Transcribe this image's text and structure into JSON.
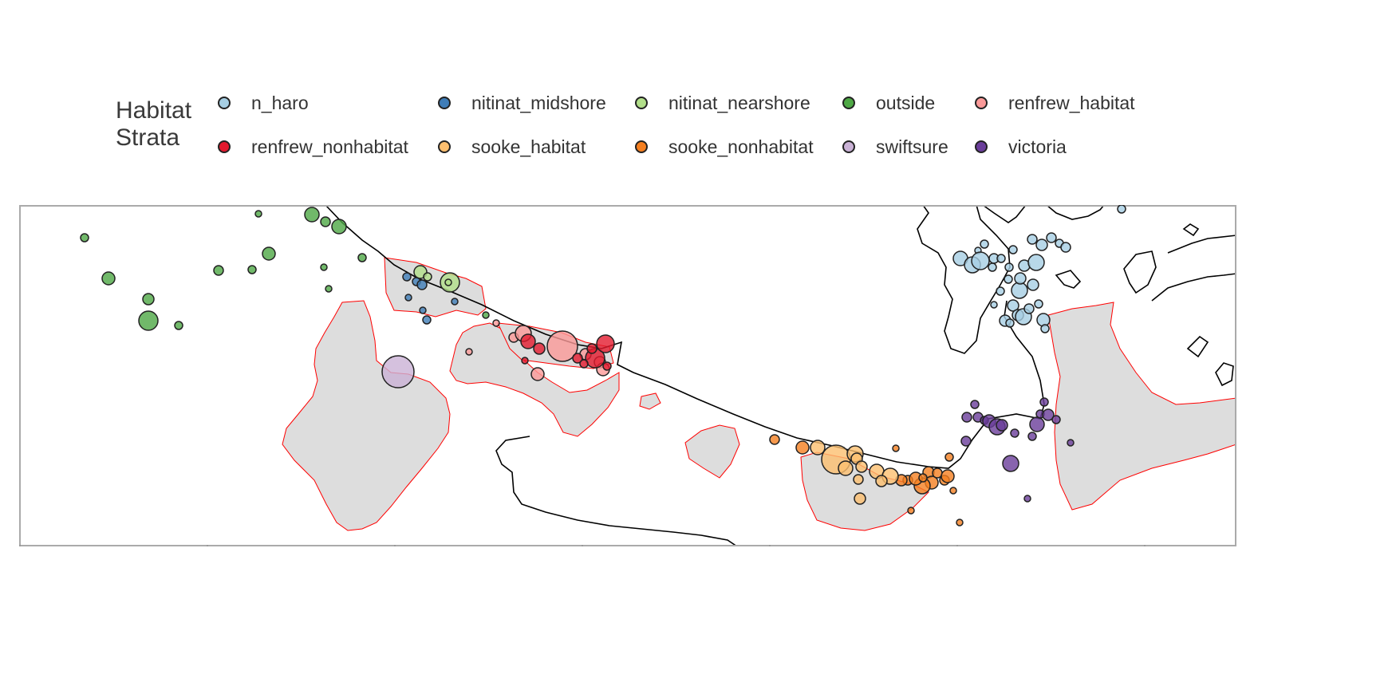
{
  "legend": {
    "title_line1": "Habitat",
    "title_line2": "Strata",
    "items": [
      {
        "label": "n_haro",
        "color": "#a6cee3"
      },
      {
        "label": "nitinat_midshore",
        "color": "#3f7db8"
      },
      {
        "label": "nitinat_nearshore",
        "color": "#b2df8a"
      },
      {
        "label": "outside",
        "color": "#4ea845"
      },
      {
        "label": "renfrew_habitat",
        "color": "#fb9a99"
      },
      {
        "label": "renfrew_nonhabitat",
        "color": "#e31a2e"
      },
      {
        "label": "sooke_habitat",
        "color": "#fdbf6f"
      },
      {
        "label": "sooke_nonhabitat",
        "color": "#f57f20"
      },
      {
        "label": "swiftsure",
        "color": "#cab2d6"
      },
      {
        "label": "victoria",
        "color": "#6a3d9a"
      }
    ]
  },
  "map": {
    "habitat_fill": "#dddddd",
    "habitat_outline": "#ff0000",
    "coastline": "#000000",
    "frame": "#aaaaaa",
    "tick_labels_shown": false,
    "x_tick_count": 7,
    "y_tick_count": 6
  }
}
